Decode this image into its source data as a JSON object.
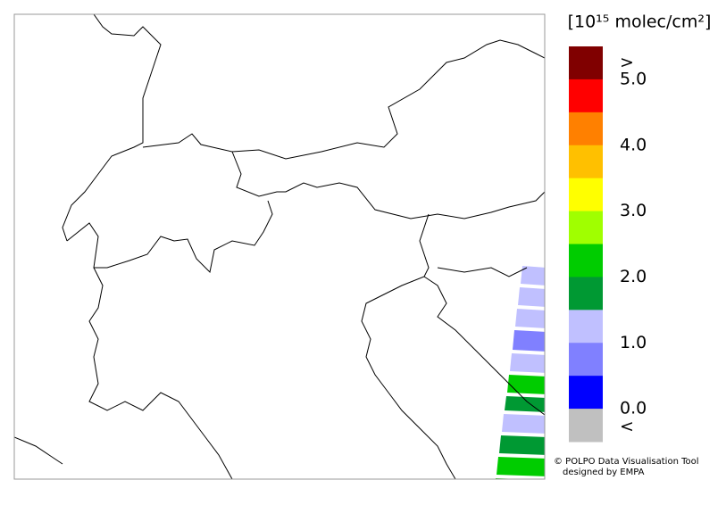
{
  "colorbar": {
    "title": "[10¹⁵ molec/cm²]",
    "colors": [
      "#800000",
      "#ff0000",
      "#ff8000",
      "#ffc000",
      "#ffff00",
      "#a0ff00",
      "#00cc00",
      "#009933",
      "#c0c0ff",
      "#8080ff",
      "#0000ff",
      "#c0c0c0"
    ],
    "over_label": ">",
    "under_label": "<",
    "ticks": [
      "5.0",
      "4.0",
      "3.0",
      "2.0",
      "1.0",
      "0.0"
    ]
  },
  "credits": [
    "© POLPO Data Visualisation Tool",
    "designed by EMPA"
  ]
}
